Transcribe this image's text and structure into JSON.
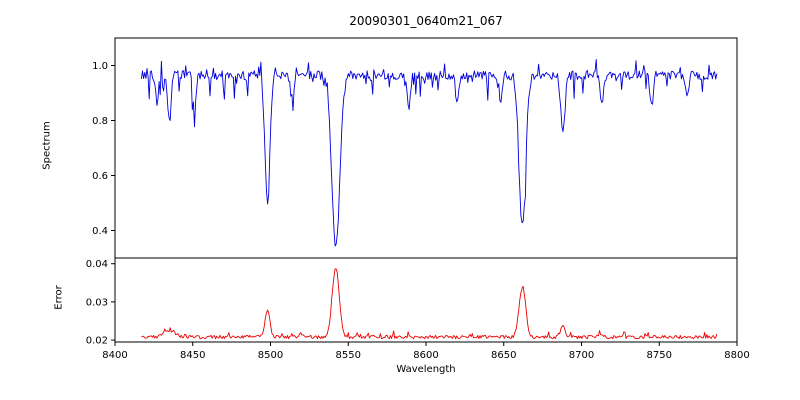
{
  "chart_data": {
    "type": "line",
    "title": "20090301_0640m21_067",
    "xlabel": "Wavelength",
    "x_range": [
      8400,
      8800
    ],
    "x_data_range": [
      8417,
      8787
    ],
    "x_ticks": [
      8400,
      8450,
      8500,
      8550,
      8600,
      8650,
      8700,
      8750,
      8800
    ],
    "x_tick_labels": [
      "8400",
      "8450",
      "8500",
      "8550",
      "8600",
      "8650",
      "8700",
      "8750",
      "8800"
    ],
    "background_color": "#ffffff",
    "axes_color": "#000000",
    "subplots": [
      {
        "ylabel": "Spectrum",
        "ylim": [
          0.3,
          1.1
        ],
        "y_ticks": [
          0.4,
          0.6,
          0.8,
          1.0
        ],
        "y_tick_labels": [
          "0.4",
          "0.6",
          "0.8",
          "1.0"
        ],
        "color": "#0000dd",
        "series": {
          "name": "spectrum",
          "baseline": 0.965,
          "noise_amplitude": 0.032,
          "dip_noise": {
            "prob": 0.1,
            "max": 0.09
          },
          "spike_noise": {
            "prob": 0.06,
            "max": 0.055
          },
          "absorption_lines": [
            {
              "center": 8498,
              "depth": 0.47,
              "width": 1.6
            },
            {
              "center": 8542,
              "depth": 0.62,
              "width": 2.6
            },
            {
              "center": 8662,
              "depth": 0.55,
              "width": 2.1
            },
            {
              "center": 8688,
              "depth": 0.22,
              "width": 1.3
            },
            {
              "center": 8427,
              "depth": 0.1,
              "width": 1.0
            },
            {
              "center": 8435,
              "depth": 0.17,
              "width": 1.1
            },
            {
              "center": 8451,
              "depth": 0.12,
              "width": 1.0
            },
            {
              "center": 8514,
              "depth": 0.1,
              "width": 1.0
            },
            {
              "center": 8589,
              "depth": 0.12,
              "width": 1.1
            },
            {
              "center": 8620,
              "depth": 0.1,
              "width": 1.0
            },
            {
              "center": 8648,
              "depth": 0.09,
              "width": 0.9
            },
            {
              "center": 8713,
              "depth": 0.11,
              "width": 1.0
            },
            {
              "center": 8745,
              "depth": 0.1,
              "width": 1.0
            },
            {
              "center": 8768,
              "depth": 0.08,
              "width": 0.9
            }
          ]
        }
      },
      {
        "ylabel": "Error",
        "ylim": [
          0.0195,
          0.0415
        ],
        "y_ticks": [
          0.02,
          0.03,
          0.04
        ],
        "y_tick_labels": [
          "0.02",
          "0.03",
          "0.04"
        ],
        "color": "#ee0000",
        "series": {
          "name": "error",
          "baseline": 0.0208,
          "noise_amplitude": 0.0009,
          "spike_noise": {
            "prob": 0.08,
            "max": 0.0013
          },
          "peaks": [
            {
              "center": 8498,
              "height": 0.0068,
              "width": 1.6
            },
            {
              "center": 8542,
              "height": 0.0182,
              "width": 2.2
            },
            {
              "center": 8662,
              "height": 0.0132,
              "width": 2.1
            },
            {
              "center": 8688,
              "height": 0.003,
              "width": 1.3
            },
            {
              "center": 8435,
              "height": 0.0018,
              "width": 3.5
            },
            {
              "center": 8520,
              "height": 0.001,
              "width": 1.2
            },
            {
              "center": 8713,
              "height": 0.001,
              "width": 1.2
            }
          ]
        }
      }
    ]
  }
}
